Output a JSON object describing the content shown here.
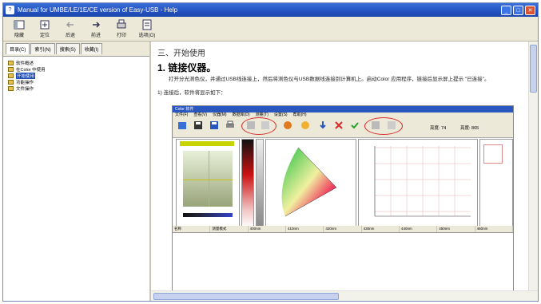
{
  "window": {
    "title": "Manual for UMBE/LE/1E/CE version of Easy-USB - Help",
    "icon": "help-book-icon",
    "buttons": [
      "minimize",
      "maximize",
      "close"
    ]
  },
  "toolbar": {
    "items": [
      {
        "label": "隐藏",
        "icon": "hide-icon"
      },
      {
        "label": "定位",
        "icon": "locate-icon"
      },
      {
        "label": "后退",
        "icon": "back-icon"
      },
      {
        "label": "前进",
        "icon": "forward-icon"
      },
      {
        "label": "打印",
        "icon": "print-icon"
      },
      {
        "label": "选项(O)",
        "icon": "options-icon"
      }
    ]
  },
  "sidebar": {
    "tabs": [
      "目录(C)",
      "索引(N)",
      "搜索(S)",
      "收藏(I)"
    ],
    "active_tab": "目录(C)",
    "tree": [
      {
        "label": "软件概述"
      },
      {
        "label": "在Color 中使用"
      },
      {
        "label": "开始使用",
        "selected": true
      },
      {
        "label": "功能操作"
      },
      {
        "label": "文件操作"
      }
    ]
  },
  "content": {
    "section_title": "三、开始使用",
    "step_title": "1. 链接仪器。",
    "step_text": "打开分光测色仪，并通过USB线连接上，然后将测色仪与USB数据线连接到计算机上。启动Color 应用程序，链接后显示屏上提示 \"已连接\"。",
    "substep_text": "1) 连接后，软件将显示如下：",
    "embedded": {
      "title": "Color 软件",
      "menu": [
        "文件(F)",
        "查看(V)",
        "仪器(M)",
        "数据库(D)",
        "测量(T)",
        "设置(S)",
        "帮助(H)"
      ],
      "toolbar_labels": [
        "打开",
        "保存",
        "另存",
        "打印",
        "黑校正",
        "白校正",
        "测量",
        "平均",
        "删除",
        "确认"
      ],
      "status_left": "亮度: 74",
      "status_right": "亮度: 865",
      "grid_headers": [
        "名称",
        "测量模式",
        "400nm",
        "410nm",
        "420nm",
        "430nm",
        "440nm",
        "450nm",
        "460nm"
      ],
      "chart_ticks": [
        "400nm",
        "450nm",
        "500nm",
        "550nm",
        "600nm",
        "650nm",
        "700nm"
      ]
    }
  },
  "colors": {
    "title_bar": "#2251c0",
    "highlight": "#d82a2a",
    "selection": "#1c4cb4"
  }
}
